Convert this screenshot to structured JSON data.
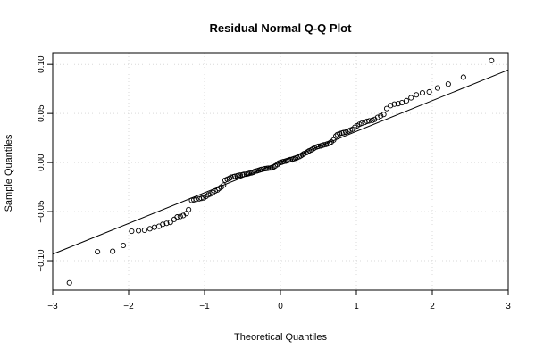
{
  "chart_data": {
    "type": "scatter",
    "title": "Residual Normal Q-Q Plot",
    "xlabel": "Theoretical Quantiles",
    "ylabel": "Sample Quantiles",
    "xlim": [
      -3,
      3
    ],
    "ylim": [
      -0.13,
      0.112
    ],
    "x_ticks": [
      -3,
      -2,
      -1,
      0,
      1,
      2,
      3
    ],
    "x_tick_labels": [
      "−3",
      "−2",
      "−1",
      "0",
      "1",
      "2",
      "3"
    ],
    "y_ticks": [
      -0.1,
      -0.05,
      0.0,
      0.05,
      0.1
    ],
    "y_tick_labels": [
      "−0.10",
      "−0.05",
      "0.00",
      "0.05",
      "0.10"
    ],
    "grid": true,
    "reference_line": {
      "intercept": 0.0005,
      "slope": 0.0313
    },
    "points": [
      [
        -2.78,
        -0.1225
      ],
      [
        -2.41,
        -0.091
      ],
      [
        -2.21,
        -0.0905
      ],
      [
        -2.07,
        -0.0845
      ],
      [
        -1.96,
        -0.07
      ],
      [
        -1.87,
        -0.0695
      ],
      [
        -1.79,
        -0.069
      ],
      [
        -1.72,
        -0.0675
      ],
      [
        -1.66,
        -0.066
      ],
      [
        -1.6,
        -0.065
      ],
      [
        -1.55,
        -0.063
      ],
      [
        -1.5,
        -0.062
      ],
      [
        -1.45,
        -0.061
      ],
      [
        -1.4,
        -0.058
      ],
      [
        -1.36,
        -0.0555
      ],
      [
        -1.32,
        -0.055
      ],
      [
        -1.28,
        -0.054
      ],
      [
        -1.24,
        -0.052
      ],
      [
        -1.21,
        -0.048
      ],
      [
        -1.17,
        -0.0385
      ],
      [
        -1.14,
        -0.038
      ],
      [
        -1.11,
        -0.0375
      ],
      [
        -1.07,
        -0.037
      ],
      [
        -1.04,
        -0.0365
      ],
      [
        -1.01,
        -0.036
      ],
      [
        -0.98,
        -0.0345
      ],
      [
        -0.95,
        -0.033
      ],
      [
        -0.92,
        -0.032
      ],
      [
        -0.89,
        -0.0305
      ],
      [
        -0.86,
        -0.029
      ],
      [
        -0.83,
        -0.028
      ],
      [
        -0.81,
        -0.0265
      ],
      [
        -0.78,
        -0.025
      ],
      [
        -0.75,
        -0.023
      ],
      [
        -0.73,
        -0.018
      ],
      [
        -0.7,
        -0.017
      ],
      [
        -0.67,
        -0.016
      ],
      [
        -0.65,
        -0.015
      ],
      [
        -0.62,
        -0.0145
      ],
      [
        -0.6,
        -0.014
      ],
      [
        -0.57,
        -0.0135
      ],
      [
        -0.55,
        -0.013
      ],
      [
        -0.53,
        -0.0128
      ],
      [
        -0.5,
        -0.0125
      ],
      [
        -0.48,
        -0.012
      ],
      [
        -0.45,
        -0.0118
      ],
      [
        -0.43,
        -0.0115
      ],
      [
        -0.41,
        -0.011
      ],
      [
        -0.38,
        -0.0105
      ],
      [
        -0.36,
        -0.01
      ],
      [
        -0.34,
        -0.009
      ],
      [
        -0.31,
        -0.0085
      ],
      [
        -0.29,
        -0.008
      ],
      [
        -0.27,
        -0.0075
      ],
      [
        -0.25,
        -0.007
      ],
      [
        -0.22,
        -0.0065
      ],
      [
        -0.2,
        -0.0062
      ],
      [
        -0.18,
        -0.006
      ],
      [
        -0.16,
        -0.0058
      ],
      [
        -0.13,
        -0.0055
      ],
      [
        -0.11,
        -0.005
      ],
      [
        -0.09,
        -0.0045
      ],
      [
        -0.07,
        -0.0035
      ],
      [
        -0.04,
        -0.002
      ],
      [
        -0.02,
        -0.0005
      ],
      [
        0.0,
        0.0
      ],
      [
        0.02,
        0.0005
      ],
      [
        0.04,
        0.001
      ],
      [
        0.07,
        0.0015
      ],
      [
        0.09,
        0.002
      ],
      [
        0.11,
        0.0025
      ],
      [
        0.13,
        0.003
      ],
      [
        0.16,
        0.0035
      ],
      [
        0.18,
        0.004
      ],
      [
        0.2,
        0.0045
      ],
      [
        0.22,
        0.005
      ],
      [
        0.25,
        0.006
      ],
      [
        0.27,
        0.007
      ],
      [
        0.29,
        0.008
      ],
      [
        0.31,
        0.009
      ],
      [
        0.34,
        0.01
      ],
      [
        0.36,
        0.011
      ],
      [
        0.38,
        0.012
      ],
      [
        0.41,
        0.013
      ],
      [
        0.43,
        0.014
      ],
      [
        0.45,
        0.015
      ],
      [
        0.48,
        0.016
      ],
      [
        0.5,
        0.0165
      ],
      [
        0.53,
        0.017
      ],
      [
        0.55,
        0.0175
      ],
      [
        0.57,
        0.018
      ],
      [
        0.6,
        0.0185
      ],
      [
        0.62,
        0.019
      ],
      [
        0.65,
        0.02
      ],
      [
        0.67,
        0.021
      ],
      [
        0.7,
        0.023
      ],
      [
        0.73,
        0.027
      ],
      [
        0.75,
        0.0285
      ],
      [
        0.78,
        0.0295
      ],
      [
        0.81,
        0.03
      ],
      [
        0.83,
        0.0305
      ],
      [
        0.86,
        0.031
      ],
      [
        0.89,
        0.032
      ],
      [
        0.92,
        0.033
      ],
      [
        0.95,
        0.034
      ],
      [
        0.98,
        0.036
      ],
      [
        1.01,
        0.0375
      ],
      [
        1.04,
        0.039
      ],
      [
        1.07,
        0.04
      ],
      [
        1.11,
        0.041
      ],
      [
        1.14,
        0.042
      ],
      [
        1.17,
        0.0425
      ],
      [
        1.21,
        0.043
      ],
      [
        1.24,
        0.044
      ],
      [
        1.28,
        0.046
      ],
      [
        1.32,
        0.0475
      ],
      [
        1.36,
        0.049
      ],
      [
        1.4,
        0.055
      ],
      [
        1.45,
        0.058
      ],
      [
        1.5,
        0.0595
      ],
      [
        1.55,
        0.06
      ],
      [
        1.6,
        0.061
      ],
      [
        1.66,
        0.063
      ],
      [
        1.72,
        0.066
      ],
      [
        1.79,
        0.069
      ],
      [
        1.87,
        0.071
      ],
      [
        1.96,
        0.072
      ],
      [
        2.07,
        0.076
      ],
      [
        2.21,
        0.08
      ],
      [
        2.41,
        0.087
      ],
      [
        2.78,
        0.104
      ]
    ]
  }
}
